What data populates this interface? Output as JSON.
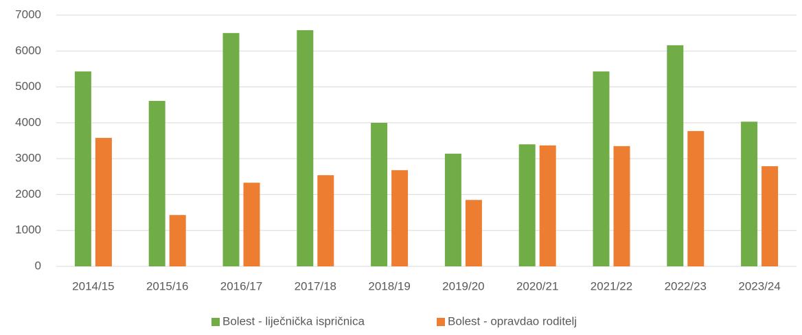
{
  "chart_data": {
    "type": "bar",
    "categories": [
      "2014/15",
      "2015/16",
      "2016/17",
      "2017/18",
      "2018/19",
      "2019/20",
      "2020/21",
      "2021/22",
      "2022/23",
      "2023/24"
    ],
    "series": [
      {
        "name": "Bolest - liječnička ispričnica",
        "color": "#70ad47",
        "values": [
          5430,
          4610,
          6500,
          6580,
          4000,
          3140,
          3400,
          5430,
          6160,
          4030
        ]
      },
      {
        "name": "Bolest - opravdao roditelj",
        "color": "#ed7d31",
        "values": [
          3580,
          1430,
          2330,
          2540,
          2680,
          1850,
          3370,
          3350,
          3770,
          2790
        ]
      }
    ],
    "ylim": [
      0,
      7000
    ],
    "yticks": [
      0,
      1000,
      2000,
      3000,
      4000,
      5000,
      6000,
      7000
    ],
    "grid": true,
    "legend": "bottom"
  }
}
